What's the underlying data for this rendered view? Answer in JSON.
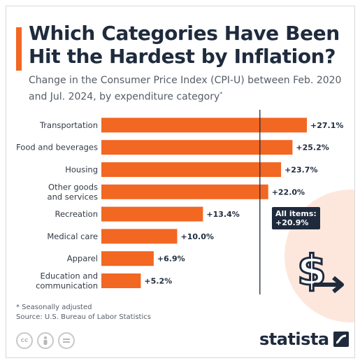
{
  "header": {
    "title": "Which Categories Have Been Hit the Hardest by Inflation?",
    "subtitle": "Change in the Consumer Price Index (CPI-U) between Feb. 2020 and Jul. 2024, by expenditure category",
    "subtitle_mark": "*"
  },
  "chart_data": {
    "type": "bar",
    "orientation": "horizontal",
    "categories": [
      "Transportation",
      "Food and beverages",
      "Housing",
      "Other goods and services",
      "Recreation",
      "Medical care",
      "Apparel",
      "Education and communication"
    ],
    "category_lines": [
      [
        "Transportation"
      ],
      [
        "Food and beverages"
      ],
      [
        "Housing"
      ],
      [
        "Other goods",
        "and services"
      ],
      [
        "Recreation"
      ],
      [
        "Medical care"
      ],
      [
        "Apparel"
      ],
      [
        "Education and",
        "communication"
      ]
    ],
    "values": [
      27.1,
      25.2,
      23.7,
      22.0,
      13.4,
      10.0,
      6.9,
      5.2
    ],
    "data_labels": [
      "+27.1%",
      "+25.2%",
      "+23.7%",
      "+22.0%",
      "+13.4%",
      "+10.0%",
      "+6.9%",
      "+5.2%"
    ],
    "reference_line": {
      "value": 20.9,
      "label_line1": "All items:",
      "label_line2": "+20.9%"
    },
    "unit": "%",
    "grid": false,
    "legend": "none",
    "bar_color": "#f26722",
    "reference_color": "#1f2b3d"
  },
  "footer": {
    "footnote": "* Seasonally adjusted",
    "source": "Source: U.S. Bureau of Labor Statistics",
    "brand": "statista"
  },
  "icons": {
    "cc": "cc",
    "attribution": "attribution-person-icon",
    "noderivs": "equals-icon",
    "dollar": "dollar-arrow-icon",
    "brand_mark": "statista-logo-icon"
  },
  "colors": {
    "accent": "#f26722",
    "navy": "#1f2b3d",
    "circle": "#fde7dd",
    "text_muted": "#555c66"
  }
}
